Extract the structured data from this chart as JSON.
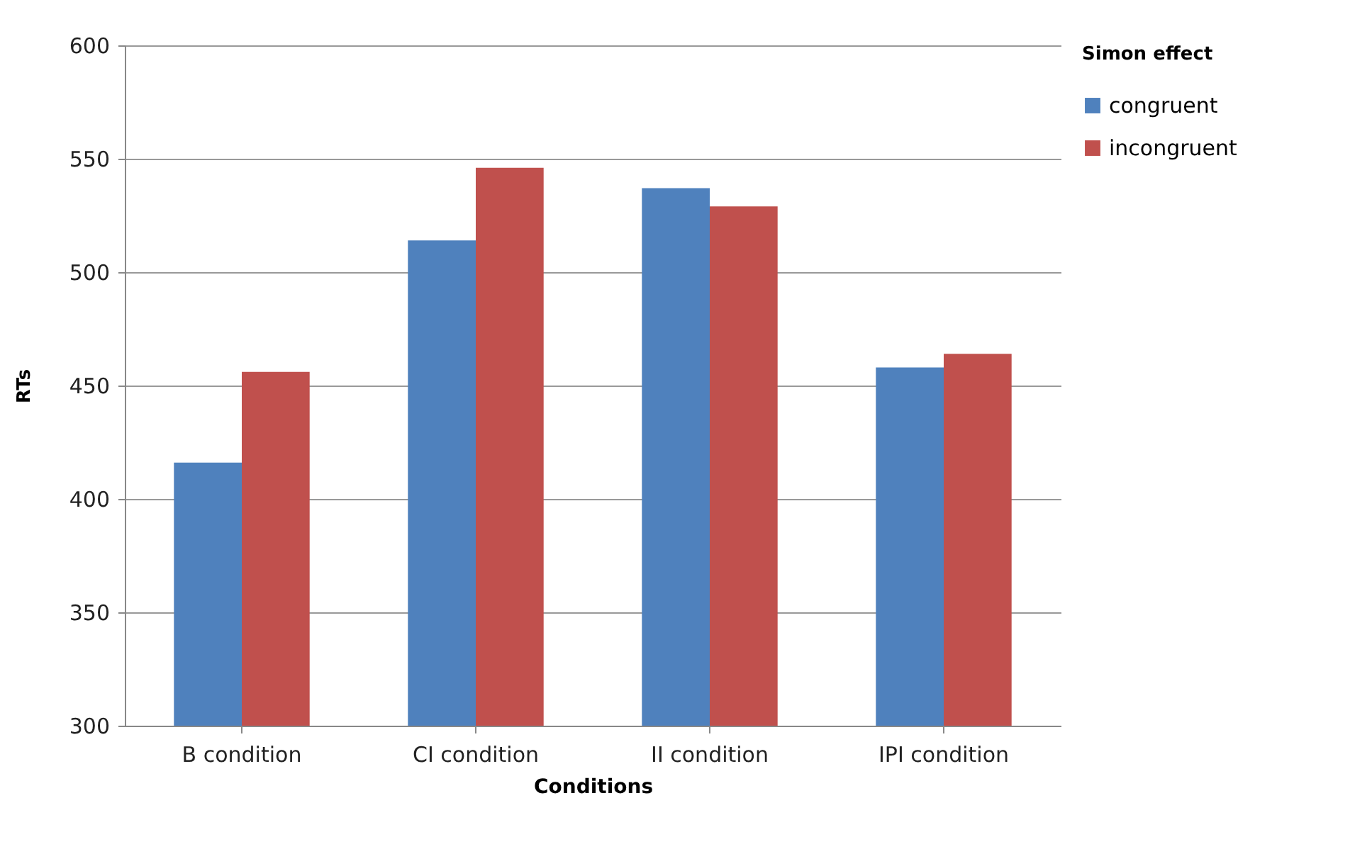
{
  "chart_data": {
    "type": "bar",
    "xlabel": "Conditions",
    "ylabel": "RTs",
    "legend_title": "Simon effect",
    "categories": [
      "B condition",
      "CI condition",
      "II condition",
      "IPI condition"
    ],
    "series": [
      {
        "name": "congruent",
        "color": "#4f81bd",
        "values": [
          416,
          514,
          537,
          458
        ]
      },
      {
        "name": "incongruent",
        "color": "#c0504d",
        "values": [
          456,
          546,
          529,
          464
        ]
      }
    ],
    "ylim": [
      300,
      600
    ],
    "yticks": [
      300,
      350,
      400,
      450,
      500,
      550,
      600
    ],
    "grid": "y",
    "legend": "right"
  }
}
